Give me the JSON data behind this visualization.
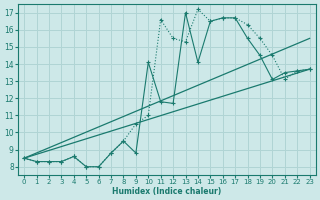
{
  "xlabel": "Humidex (Indice chaleur)",
  "bg_color": "#cde8e8",
  "grid_color": "#b0d4d4",
  "line_color": "#1a7a6e",
  "xlim": [
    -0.5,
    23.5
  ],
  "ylim": [
    7.5,
    17.5
  ],
  "yticks": [
    8,
    9,
    10,
    11,
    12,
    13,
    14,
    15,
    16,
    17
  ],
  "xticks": [
    0,
    1,
    2,
    3,
    4,
    5,
    6,
    7,
    8,
    9,
    10,
    11,
    12,
    13,
    14,
    15,
    16,
    17,
    18,
    19,
    20,
    21,
    22,
    23
  ],
  "series_dotted": {
    "x": [
      0,
      1,
      2,
      3,
      4,
      5,
      6,
      7,
      8,
      9,
      10,
      11,
      12,
      13,
      14,
      15,
      16,
      17,
      18,
      19,
      20,
      21,
      22,
      23
    ],
    "y": [
      8.5,
      8.3,
      8.3,
      8.3,
      8.6,
      8.0,
      8.0,
      8.8,
      9.5,
      10.5,
      11.0,
      16.6,
      15.5,
      15.3,
      17.2,
      16.5,
      16.7,
      16.7,
      16.3,
      15.5,
      14.5,
      13.1,
      13.6,
      13.7
    ]
  },
  "series_solid": {
    "x": [
      0,
      1,
      2,
      3,
      4,
      5,
      6,
      7,
      8,
      9,
      10,
      11,
      12,
      13,
      14,
      15,
      16,
      17,
      18,
      19,
      20,
      21,
      22,
      23
    ],
    "y": [
      8.5,
      8.3,
      8.3,
      8.3,
      8.6,
      8.0,
      8.0,
      8.8,
      9.5,
      8.8,
      14.1,
      11.8,
      11.7,
      17.0,
      14.1,
      16.5,
      16.7,
      16.7,
      15.5,
      14.5,
      13.1,
      13.5,
      13.6,
      13.7
    ]
  },
  "line1": {
    "x": [
      0,
      23
    ],
    "y": [
      8.5,
      13.7
    ]
  },
  "line2": {
    "x": [
      0,
      23
    ],
    "y": [
      8.5,
      15.5
    ]
  }
}
